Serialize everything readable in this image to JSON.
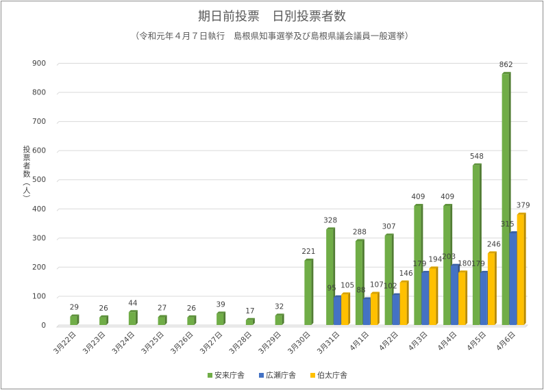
{
  "chart_data": {
    "type": "bar",
    "title": "期日前投票　日別投票者数",
    "subtitle": "（令和元年４月７日執行　島根県知事選挙及び島根県議会議員一般選挙）",
    "ylabel": "投票者数（人）",
    "xlabel": "",
    "ylim": [
      0,
      900
    ],
    "yticks": [
      0,
      100,
      200,
      300,
      400,
      500,
      600,
      700,
      800,
      900
    ],
    "grid": true,
    "legend_position": "bottom",
    "categories": [
      "3月22日",
      "3月23日",
      "3月24日",
      "3月25日",
      "3月26日",
      "3月27日",
      "3月28日",
      "3月29日",
      "3月30日",
      "3月31日",
      "4月1日",
      "4月2日",
      "4月3日",
      "4月4日",
      "4月5日",
      "4月6日"
    ],
    "series": [
      {
        "name": "安来庁舎",
        "color": "#70ad47",
        "values": [
          29,
          26,
          44,
          27,
          26,
          39,
          17,
          32,
          221,
          328,
          288,
          307,
          409,
          409,
          548,
          862
        ]
      },
      {
        "name": "広瀬庁舎",
        "color": "#4472c4",
        "values": [
          null,
          null,
          null,
          null,
          null,
          null,
          null,
          null,
          null,
          95,
          88,
          102,
          179,
          203,
          179,
          315
        ]
      },
      {
        "name": "伯太庁舎",
        "color": "#ffc000",
        "values": [
          null,
          null,
          null,
          null,
          null,
          null,
          null,
          null,
          null,
          105,
          107,
          146,
          194,
          180,
          246,
          379
        ]
      }
    ]
  }
}
